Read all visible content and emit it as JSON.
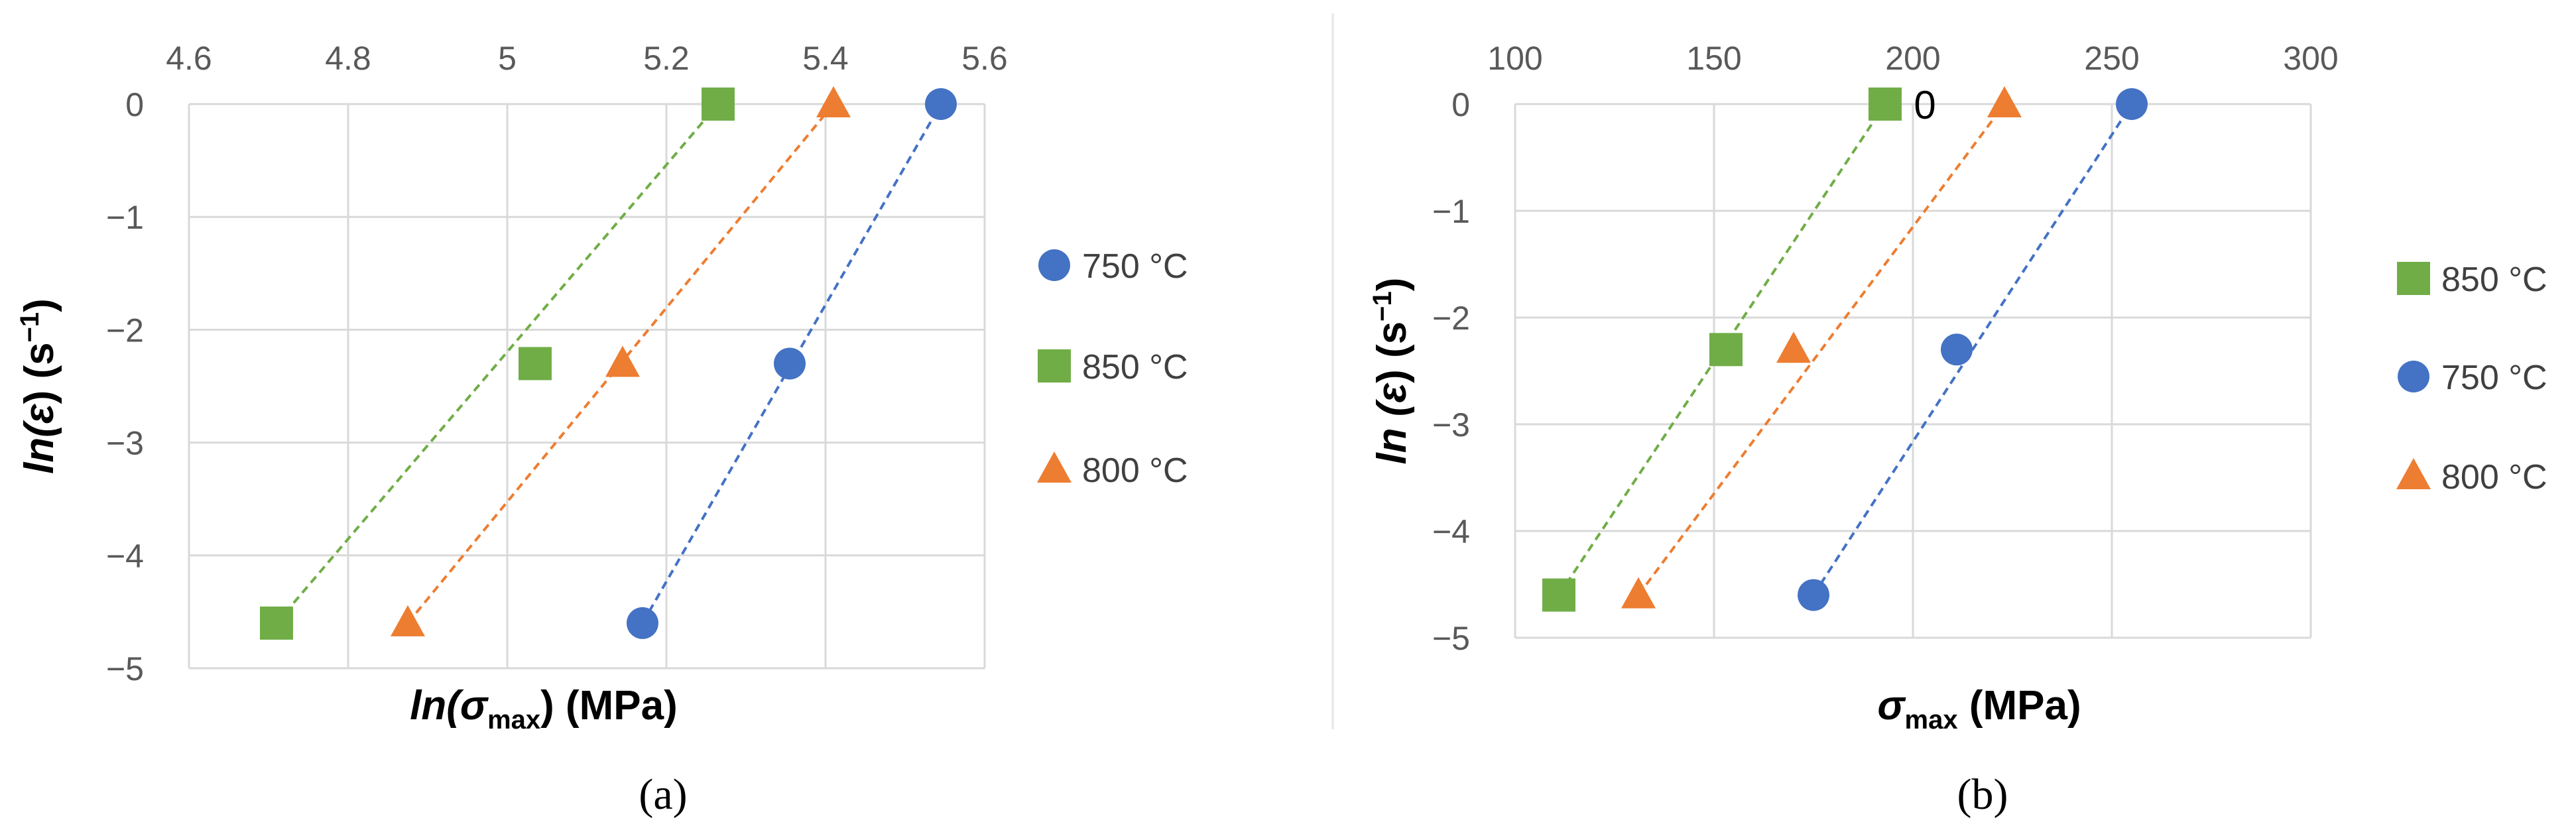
{
  "colors": {
    "blue": "#4472c4",
    "orange": "#ed7d31",
    "green": "#70ad47"
  },
  "chart_data": [
    {
      "type": "scatter",
      "panel_label": "(a)",
      "xlabel_pre": "ln(σ",
      "xlabel_sub": "max",
      "xlabel_post": ") (MPa)",
      "ylabel_pre": "ln(ε",
      "ylabel_post": ") (s",
      "ylabel_sup": "−1",
      "ylabel_end": ")",
      "xlim": [
        4.6,
        5.6
      ],
      "ylim": [
        -5,
        0
      ],
      "x_ticks": [
        4.6,
        4.8,
        5,
        5.2,
        5.4,
        5.6
      ],
      "x_tick_labels": [
        "4.6",
        "4.8",
        "5",
        "5.2",
        "5.4",
        "5.6"
      ],
      "y_ticks": [
        0,
        -1,
        -2,
        -3,
        -4,
        -5
      ],
      "y_tick_labels": [
        "0",
        "−1",
        "−2",
        "−3",
        "−4",
        "−5"
      ],
      "x_axis_position": "top",
      "grid": true,
      "legend_position": "right",
      "annotations": [],
      "series": [
        {
          "name": "750 °C",
          "marker": "circle",
          "color": "#4472c4",
          "x": [
            5.17,
            5.355,
            5.545
          ],
          "y": [
            -4.6,
            -2.3,
            0
          ],
          "trendline": true
        },
        {
          "name": "850 °C",
          "marker": "square",
          "color": "#70ad47",
          "x": [
            4.71,
            5.035,
            5.265
          ],
          "y": [
            -4.6,
            -2.3,
            0
          ],
          "trendline": true
        },
        {
          "name": "800 °C",
          "marker": "triangle",
          "color": "#ed7d31",
          "x": [
            4.875,
            5.145,
            5.41
          ],
          "y": [
            -4.6,
            -2.3,
            0
          ],
          "trendline": true
        }
      ]
    },
    {
      "type": "scatter",
      "panel_label": "(b)",
      "xlabel_pre": "σ",
      "xlabel_sub": "max",
      "xlabel_post": "  (MPa)",
      "ylabel_pre": "ln (ε",
      "ylabel_post": ") (s",
      "ylabel_sup": "−1",
      "ylabel_end": ")",
      "xlim": [
        100,
        300
      ],
      "ylim": [
        -5,
        0
      ],
      "x_ticks": [
        100,
        150,
        200,
        250,
        300
      ],
      "x_tick_labels": [
        "100",
        "150",
        "200",
        "250",
        "300"
      ],
      "y_ticks": [
        0,
        -1,
        -2,
        -3,
        -4,
        -5
      ],
      "y_tick_labels": [
        "0",
        "−1",
        "−2",
        "−3",
        "−4",
        "−5"
      ],
      "x_axis_position": "top",
      "grid": true,
      "legend_position": "right",
      "annotations": [
        {
          "text": "0",
          "x": 203,
          "y": 0
        }
      ],
      "series": [
        {
          "name": "850 °C",
          "marker": "square",
          "color": "#70ad47",
          "x": [
            111,
            153,
            193
          ],
          "y": [
            -4.6,
            -2.3,
            0
          ],
          "trendline": true
        },
        {
          "name": "750 °C",
          "marker": "circle",
          "color": "#4472c4",
          "x": [
            175,
            211,
            255
          ],
          "y": [
            -4.6,
            -2.3,
            0
          ],
          "trendline": true
        },
        {
          "name": "800 °C",
          "marker": "triangle",
          "color": "#ed7d31",
          "x": [
            131,
            170,
            223
          ],
          "y": [
            -4.6,
            -2.3,
            0
          ],
          "trendline": true
        }
      ]
    }
  ]
}
